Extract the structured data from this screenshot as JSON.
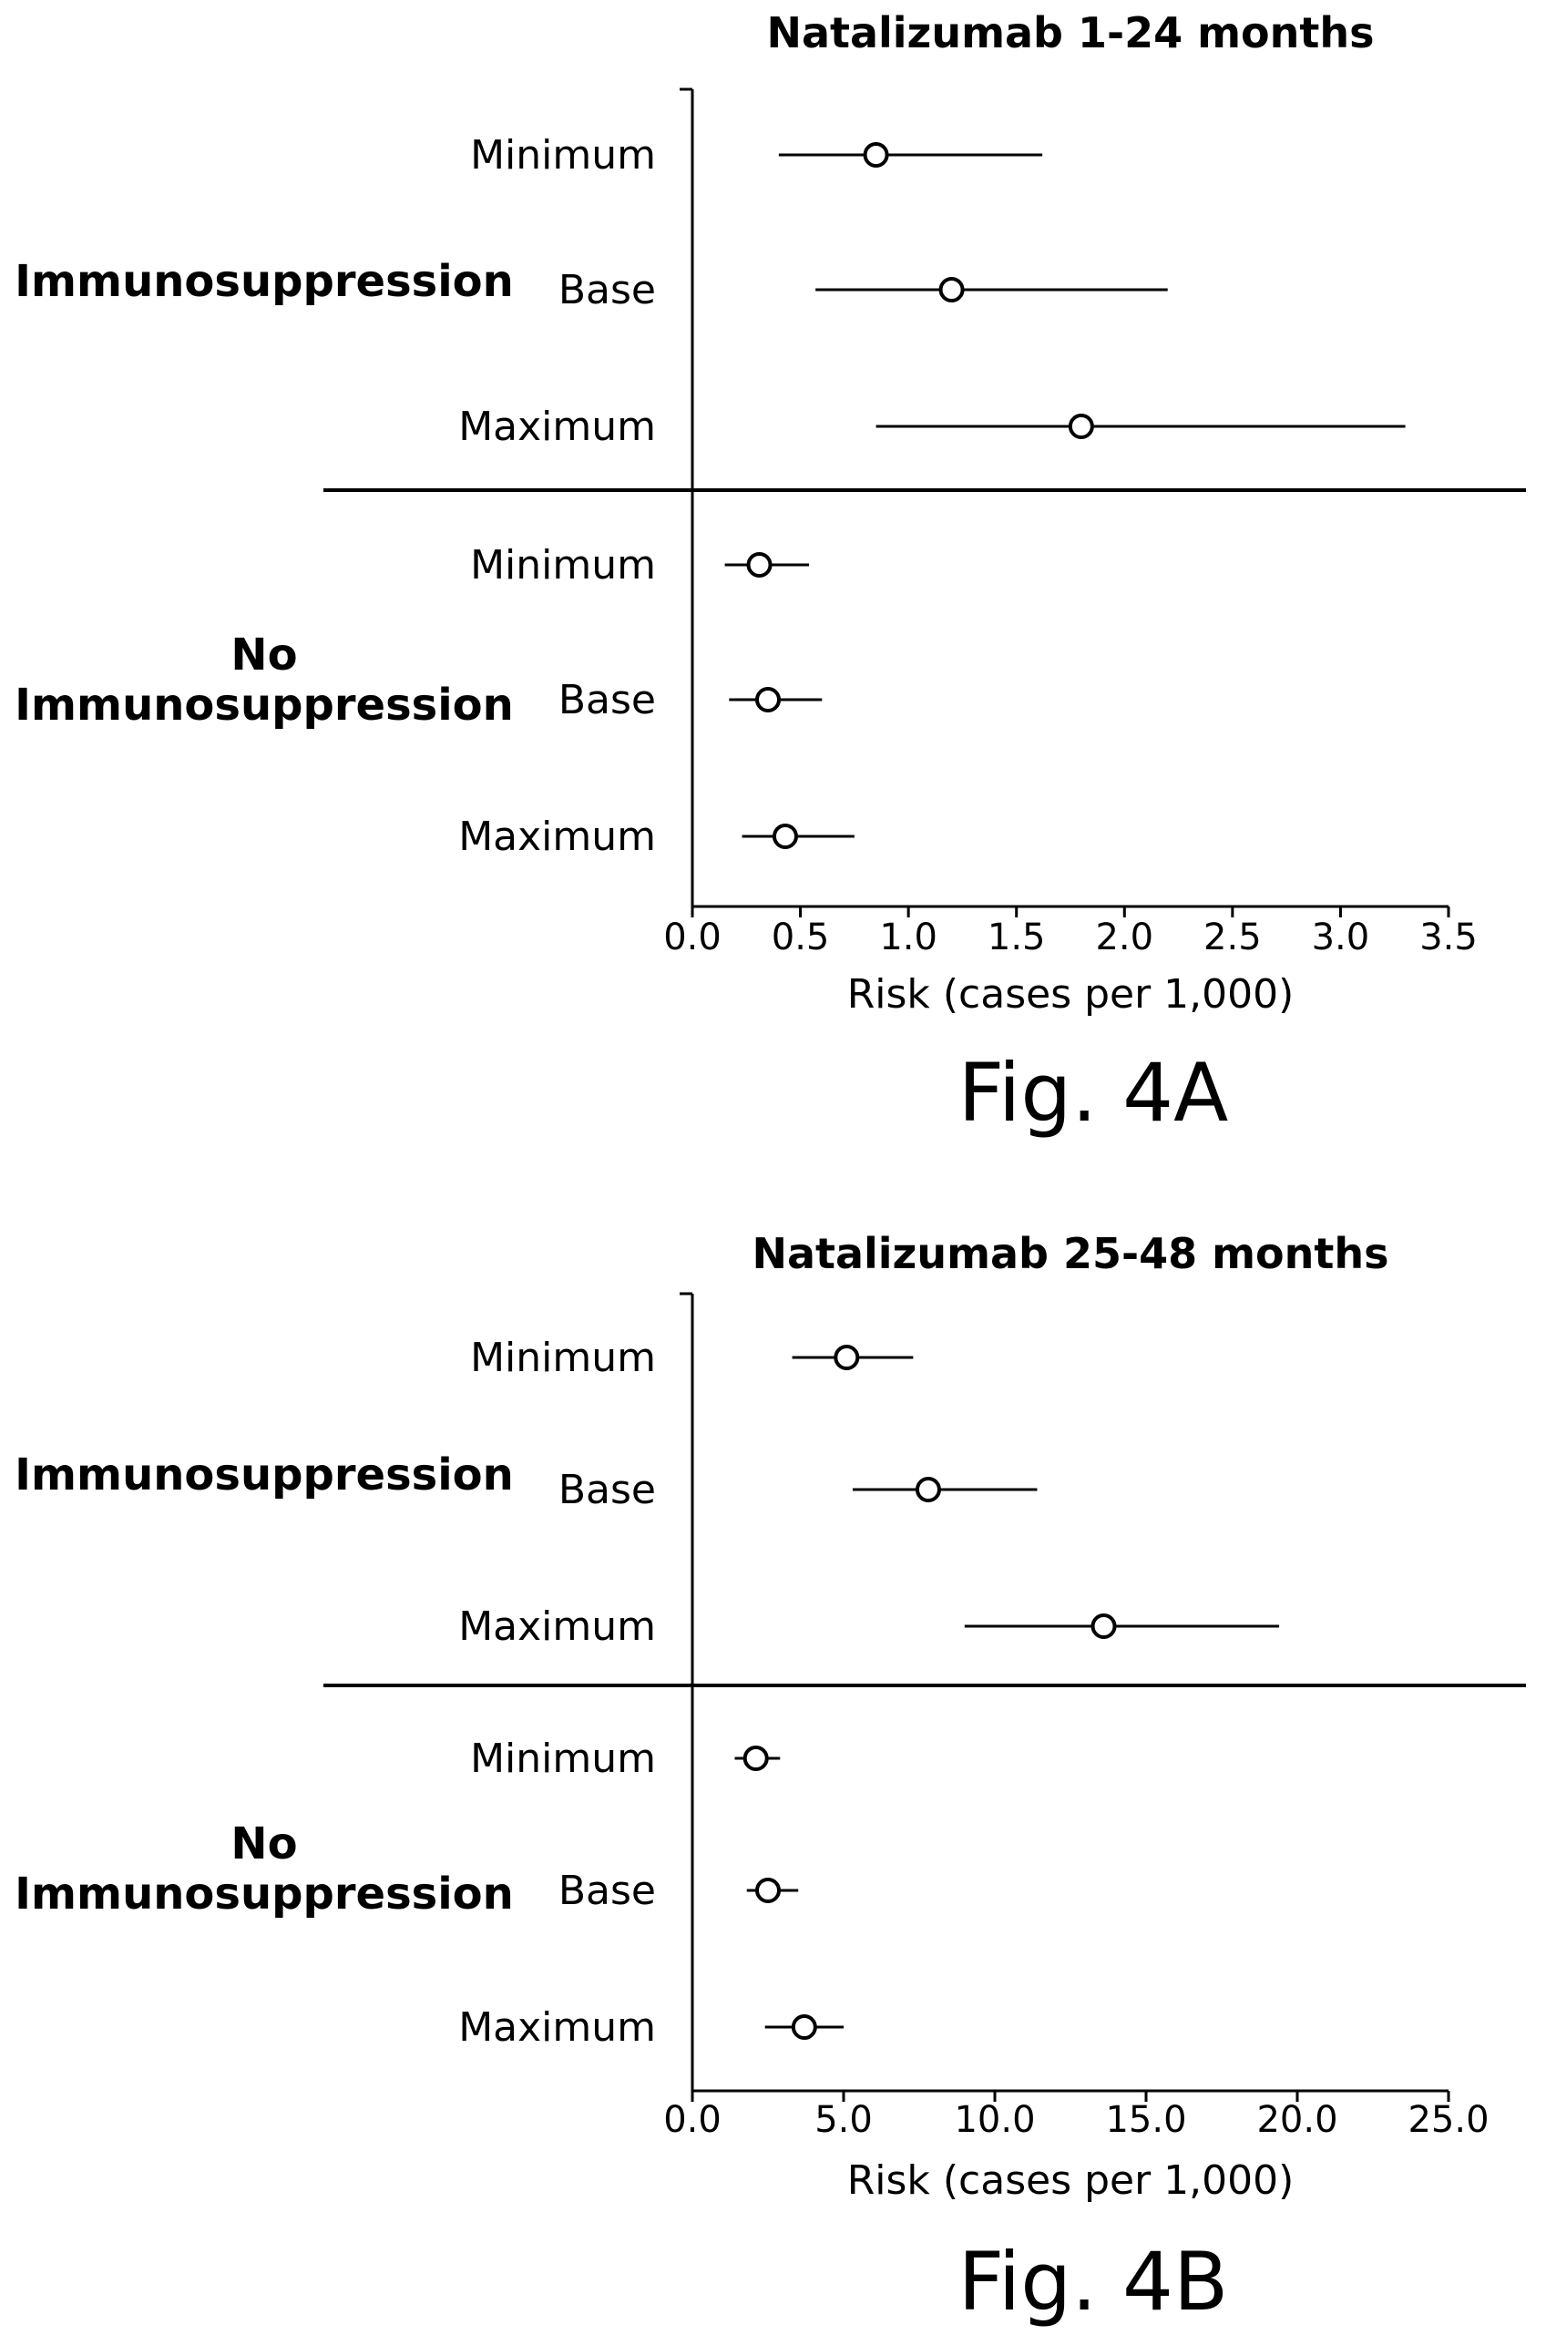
{
  "chart_data": [
    {
      "type": "forest",
      "title": "Natalizumab 1-24 months",
      "figure_label": "Fig. 4A",
      "xlabel": "Risk (cases per 1,000)",
      "xlim": [
        0,
        3.5
      ],
      "xticks": [
        "0.0",
        "0.5",
        "1.0",
        "1.5",
        "2.0",
        "2.5",
        "3.0",
        "3.5"
      ],
      "groups": [
        {
          "label_lines": [
            "Immunosuppression"
          ],
          "rows": [
            {
              "label": "Minimum",
              "estimate": 0.85,
              "low": 0.4,
              "high": 1.62
            },
            {
              "label": "Base",
              "estimate": 1.2,
              "low": 0.57,
              "high": 2.2
            },
            {
              "label": "Maximum",
              "estimate": 1.8,
              "low": 0.85,
              "high": 3.3
            }
          ]
        },
        {
          "label_lines": [
            "No",
            "Immunosuppression"
          ],
          "rows": [
            {
              "label": "Minimum",
              "estimate": 0.31,
              "low": 0.15,
              "high": 0.54
            },
            {
              "label": "Base",
              "estimate": 0.35,
              "low": 0.17,
              "high": 0.6
            },
            {
              "label": "Maximum",
              "estimate": 0.43,
              "low": 0.23,
              "high": 0.75
            }
          ]
        }
      ]
    },
    {
      "type": "forest",
      "title": "Natalizumab 25-48 months",
      "figure_label": "Fig. 4B",
      "xlabel": "Risk (cases per 1,000)",
      "xlim": [
        0,
        25
      ],
      "xticks": [
        "0.0",
        "5.0",
        "10.0",
        "15.0",
        "20.0",
        "25.0"
      ],
      "groups": [
        {
          "label_lines": [
            "Immunosuppression"
          ],
          "rows": [
            {
              "label": "Minimum",
              "estimate": 5.1,
              "low": 3.3,
              "high": 7.3
            },
            {
              "label": "Base",
              "estimate": 7.8,
              "low": 5.3,
              "high": 11.4
            },
            {
              "label": "Maximum",
              "estimate": 13.6,
              "low": 9.0,
              "high": 19.4
            }
          ]
        },
        {
          "label_lines": [
            "No",
            "Immunosuppression"
          ],
          "rows": [
            {
              "label": "Minimum",
              "estimate": 2.1,
              "low": 1.4,
              "high": 2.9
            },
            {
              "label": "Base",
              "estimate": 2.5,
              "low": 1.8,
              "high": 3.5
            },
            {
              "label": "Maximum",
              "estimate": 3.7,
              "low": 2.4,
              "high": 5.0
            }
          ]
        }
      ]
    }
  ]
}
